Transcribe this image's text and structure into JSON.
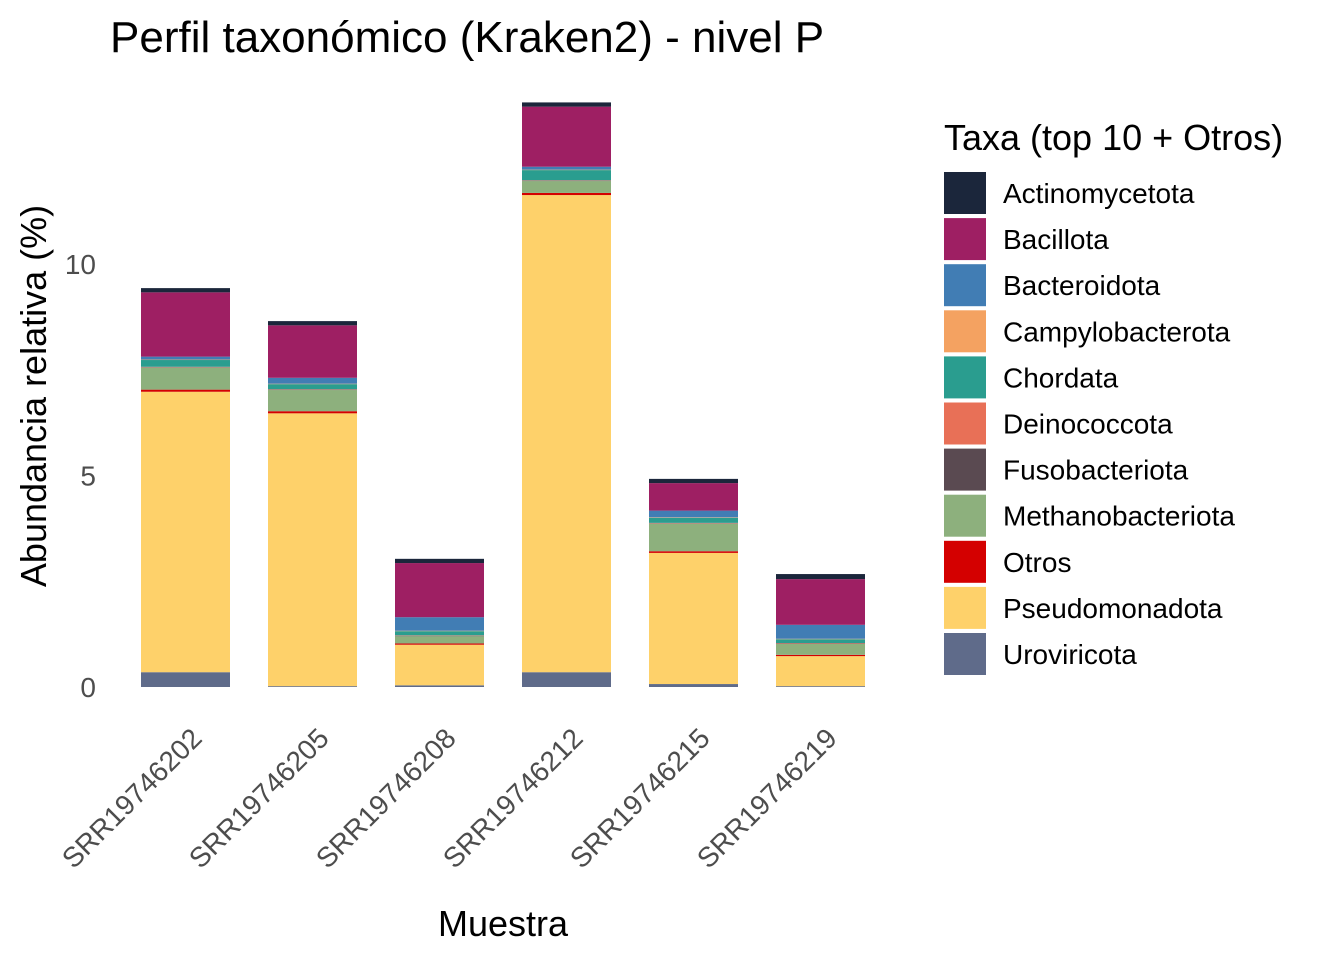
{
  "chart_data": {
    "type": "bar",
    "stacked": true,
    "title": "Perfil taxonómico (Kraken2) - nivel P",
    "xlabel": "Muestra",
    "ylabel": "Abundancia relativa (%)",
    "ylim": [
      0,
      14
    ],
    "yticks": [
      0,
      5,
      10
    ],
    "grid": false,
    "legend_position": "right",
    "legend_title": "Taxa (top 10 + Otros)",
    "categories": [
      "SRR19746202",
      "SRR19746205",
      "SRR19746208",
      "SRR19746212",
      "SRR19746215",
      "SRR19746219"
    ],
    "series": [
      {
        "name": "Uroviricota",
        "color": "#5f6b8a",
        "values": [
          0.35,
          0.02,
          0.04,
          0.35,
          0.07,
          0.02
        ]
      },
      {
        "name": "Pseudomonadota",
        "color": "#fed16a",
        "values": [
          6.63,
          6.45,
          0.96,
          11.28,
          3.1,
          0.71
        ]
      },
      {
        "name": "Otros",
        "color": "#d40000",
        "values": [
          0.05,
          0.05,
          0.03,
          0.05,
          0.04,
          0.03
        ]
      },
      {
        "name": "Methanobacteriota",
        "color": "#8db07d",
        "values": [
          0.52,
          0.5,
          0.17,
          0.28,
          0.65,
          0.26
        ]
      },
      {
        "name": "Fusobacteriota",
        "color": "#5a4a51",
        "values": [
          0.01,
          0.01,
          0.01,
          0.01,
          0.01,
          0.01
        ]
      },
      {
        "name": "Deinococcota",
        "color": "#e87057",
        "values": [
          0.01,
          0.01,
          0.01,
          0.01,
          0.01,
          0.01
        ]
      },
      {
        "name": "Chordata",
        "color": "#2a9d8f",
        "values": [
          0.16,
          0.12,
          0.1,
          0.24,
          0.12,
          0.09
        ]
      },
      {
        "name": "Campylobacterota",
        "color": "#f4a261",
        "values": [
          0.01,
          0.01,
          0.01,
          0.01,
          0.01,
          0.01
        ]
      },
      {
        "name": "Bacteroidota",
        "color": "#417db4",
        "values": [
          0.07,
          0.14,
          0.32,
          0.07,
          0.16,
          0.33
        ]
      },
      {
        "name": "Bacillota",
        "color": "#9e1f63",
        "values": [
          1.52,
          1.24,
          1.28,
          1.42,
          0.65,
          1.08
        ]
      },
      {
        "name": "Actinomycetota",
        "color": "#1b263b",
        "values": [
          0.1,
          0.1,
          0.1,
          0.1,
          0.1,
          0.12
        ]
      }
    ],
    "legend_order": [
      "Actinomycetota",
      "Bacillota",
      "Bacteroidota",
      "Campylobacterota",
      "Chordata",
      "Deinococcota",
      "Fusobacteriota",
      "Methanobacteriota",
      "Otros",
      "Pseudomonadota",
      "Uroviricota"
    ]
  }
}
